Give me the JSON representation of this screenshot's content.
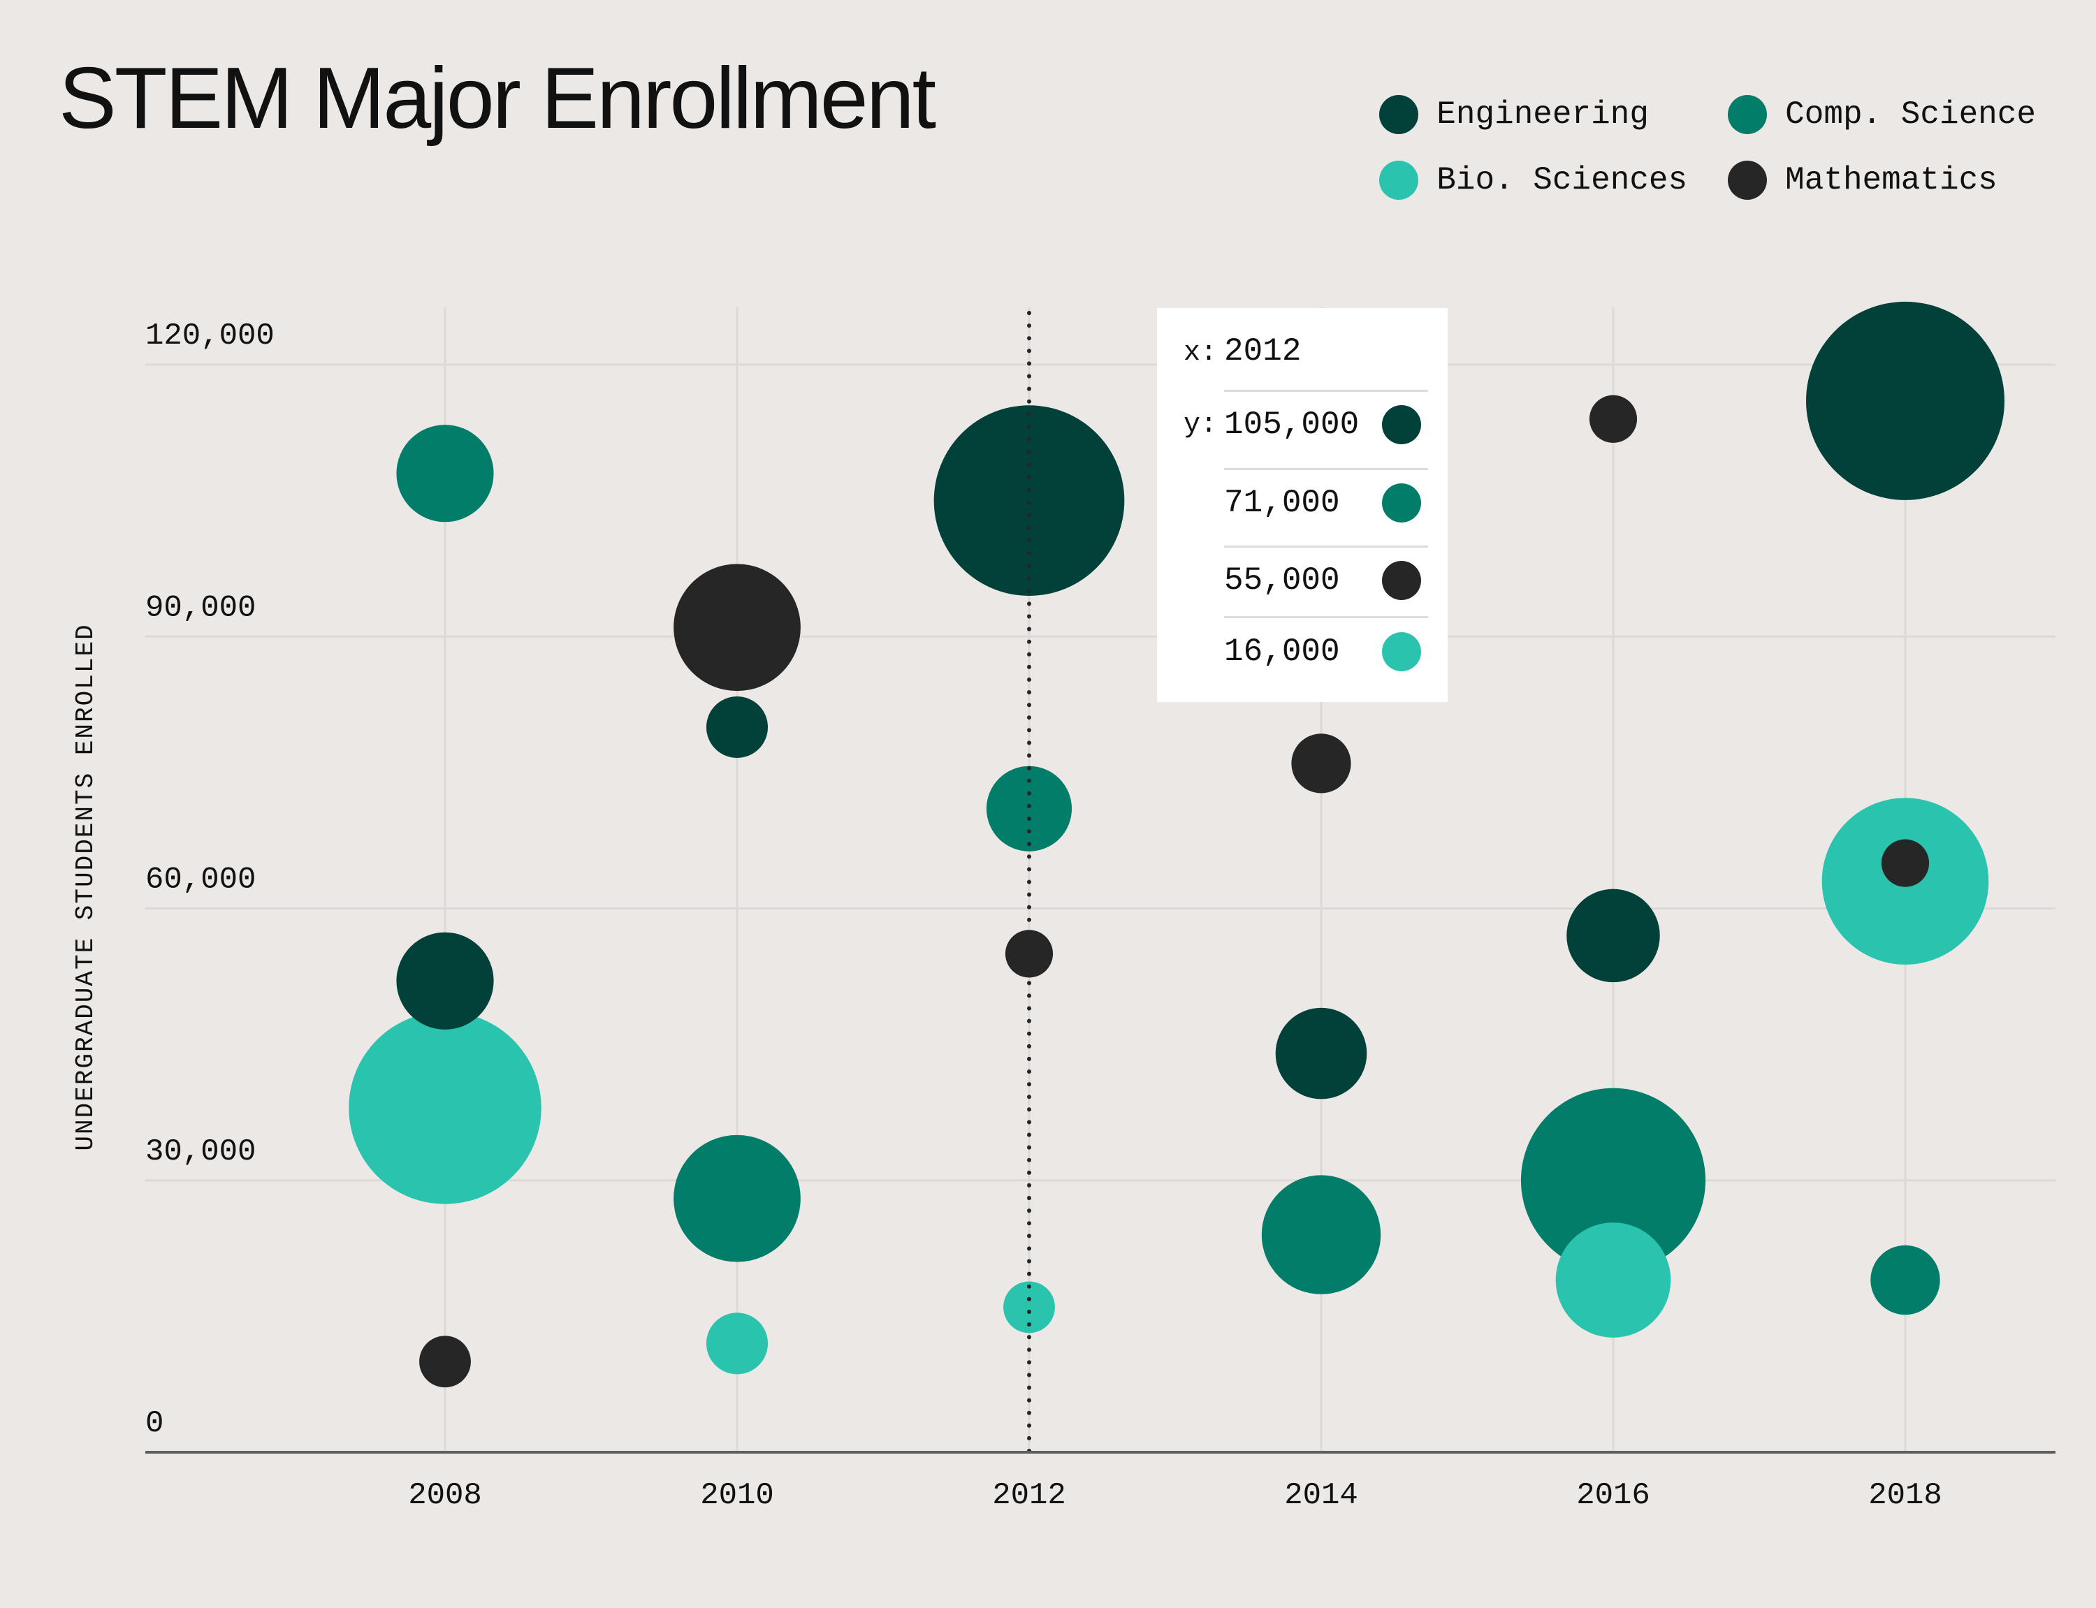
{
  "title": "STEM Major Enrollment",
  "legend": [
    {
      "name": "Engineering",
      "color": "#024139"
    },
    {
      "name": "Comp. Science",
      "color": "#027d6a"
    },
    {
      "name": "Bio. Sciences",
      "color": "#29c3ae"
    },
    {
      "name": "Mathematics",
      "color": "#262626"
    }
  ],
  "tooltip": {
    "x_label": "x:",
    "x_value": "2012",
    "y_label": "y:",
    "rows": [
      {
        "value": "105,000",
        "series": "Engineering",
        "color": "#024139"
      },
      {
        "value": "71,000",
        "series": "Comp. Science",
        "color": "#027d6a"
      },
      {
        "value": "55,000",
        "series": "Mathematics",
        "color": "#262626"
      },
      {
        "value": "16,000",
        "series": "Bio. Sciences",
        "color": "#29c3ae"
      }
    ]
  },
  "chart_data": {
    "type": "scatter",
    "subtype": "bubble",
    "title": "STEM Major Enrollment",
    "xlabel": "",
    "ylabel": "UNDERGRADUATE STUDDENTS ENROLLED",
    "x_ticks": [
      "2008",
      "2010",
      "2012",
      "2014",
      "2016",
      "2018"
    ],
    "y_ticks": [
      "0",
      "30,000",
      "60,000",
      "90,000",
      "120,000"
    ],
    "xlim": [
      2006,
      2019
    ],
    "ylim": [
      0,
      120000
    ],
    "grid": true,
    "legend_position": "top-right",
    "highlight_x": 2012,
    "size_note": "size = relative bubble radius (largest = 1.0)",
    "series": [
      {
        "name": "Engineering",
        "color": "#024139",
        "points": [
          {
            "x": 2008,
            "y": 52000,
            "size": 0.49
          },
          {
            "x": 2010,
            "y": 80000,
            "size": 0.31
          },
          {
            "x": 2012,
            "y": 105000,
            "size": 0.96
          },
          {
            "x": 2014,
            "y": 44000,
            "size": 0.46
          },
          {
            "x": 2016,
            "y": 57000,
            "size": 0.47
          },
          {
            "x": 2018,
            "y": 116000,
            "size": 1.0
          }
        ]
      },
      {
        "name": "Comp. Science",
        "color": "#027d6a",
        "points": [
          {
            "x": 2008,
            "y": 108000,
            "size": 0.49
          },
          {
            "x": 2010,
            "y": 28000,
            "size": 0.64
          },
          {
            "x": 2012,
            "y": 71000,
            "size": 0.43
          },
          {
            "x": 2014,
            "y": 24000,
            "size": 0.6
          },
          {
            "x": 2016,
            "y": 30000,
            "size": 0.93
          },
          {
            "x": 2018,
            "y": 19000,
            "size": 0.35
          }
        ]
      },
      {
        "name": "Bio. Sciences",
        "color": "#29c3ae",
        "points": [
          {
            "x": 2008,
            "y": 38000,
            "size": 0.97
          },
          {
            "x": 2010,
            "y": 12000,
            "size": 0.31
          },
          {
            "x": 2012,
            "y": 16000,
            "size": 0.26
          },
          {
            "x": 2016,
            "y": 19000,
            "size": 0.58
          },
          {
            "x": 2018,
            "y": 63000,
            "size": 0.84
          }
        ]
      },
      {
        "name": "Mathematics",
        "color": "#262626",
        "points": [
          {
            "x": 2008,
            "y": 10000,
            "size": 0.26
          },
          {
            "x": 2010,
            "y": 91000,
            "size": 0.64
          },
          {
            "x": 2012,
            "y": 55000,
            "size": 0.24
          },
          {
            "x": 2014,
            "y": 76000,
            "size": 0.3
          },
          {
            "x": 2016,
            "y": 114000,
            "size": 0.24
          },
          {
            "x": 2018,
            "y": 65000,
            "size": 0.24
          }
        ]
      }
    ]
  }
}
